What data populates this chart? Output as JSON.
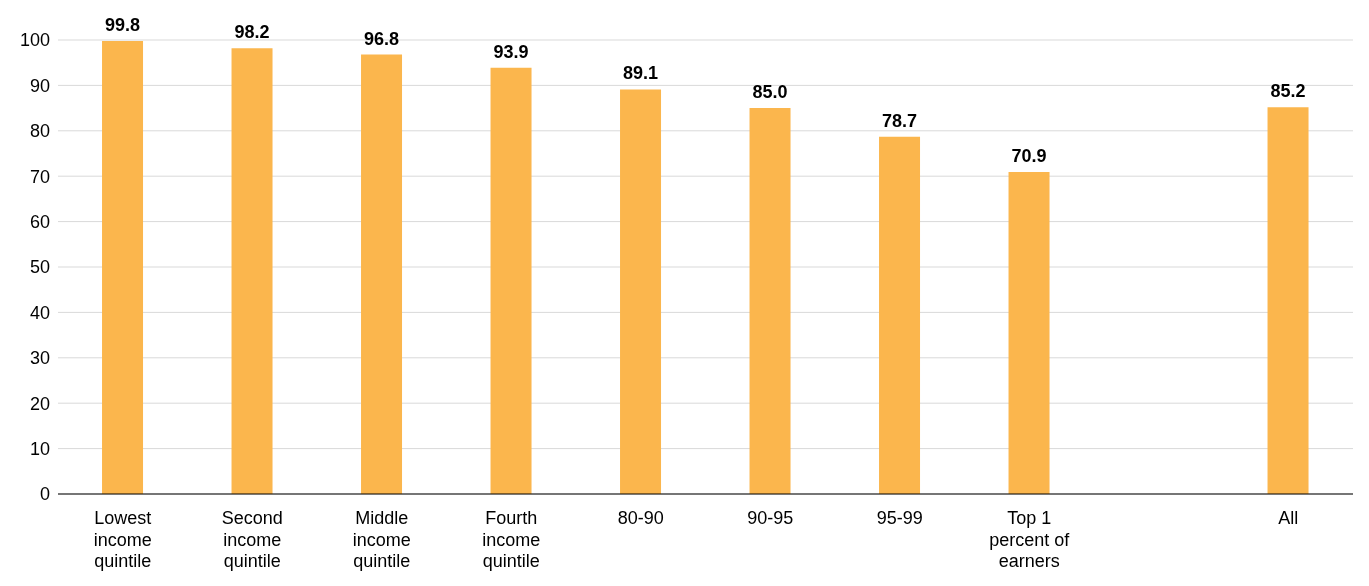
{
  "chart_data": {
    "type": "bar",
    "categories": [
      "Lowest income quintile",
      "Second income quintile",
      "Middle income quintile",
      "Fourth income quintile",
      "80-90",
      "90-95",
      "95-99",
      "Top 1 percent of earners",
      null,
      "All"
    ],
    "values": [
      99.8,
      98.2,
      96.8,
      93.9,
      89.1,
      85.0,
      78.7,
      70.9,
      null,
      85.2
    ],
    "value_labels": [
      "99.8",
      "98.2",
      "96.8",
      "93.9",
      "89.1",
      "85.0",
      "78.7",
      "70.9",
      null,
      "85.2"
    ],
    "color": "#fbb64d",
    "ylim": [
      0,
      100
    ],
    "yticks": [
      0,
      10,
      20,
      30,
      40,
      50,
      60,
      70,
      80,
      90,
      100
    ],
    "grid": "y"
  }
}
